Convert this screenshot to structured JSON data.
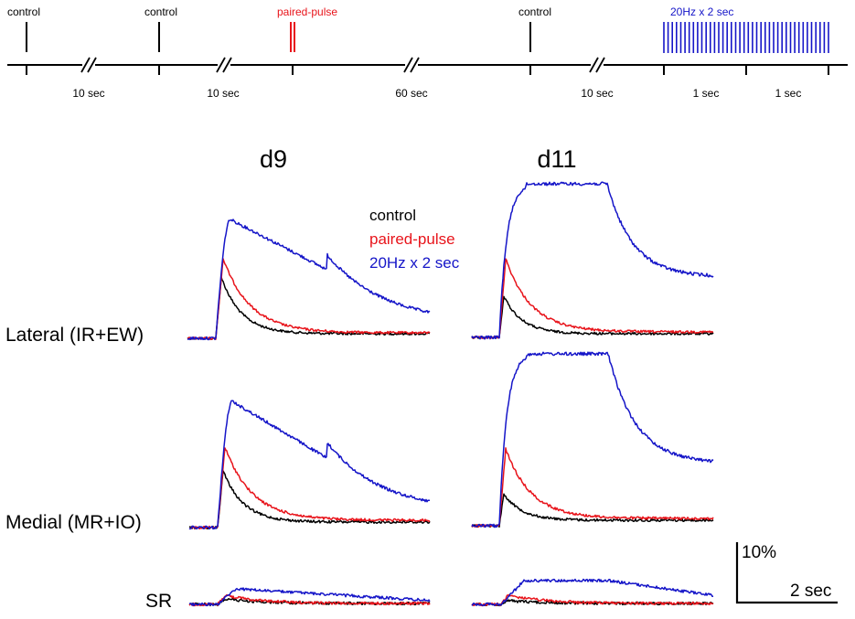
{
  "colors": {
    "control": "#000000",
    "paired": "#e8141b",
    "tetanus": "#1515c8"
  },
  "timeline": {
    "labels": {
      "control1": "control",
      "control2": "control",
      "paired": "paired-pulse",
      "control3": "control",
      "train": "20Hz x 2 sec"
    },
    "intervals": [
      "10 sec",
      "10 sec",
      "60 sec",
      "10 sec",
      "1 sec",
      "1 sec"
    ]
  },
  "columns": [
    "d9",
    "d11"
  ],
  "rows": [
    "Lateral (IR+EW)",
    "Medial (MR+IO)",
    "SR"
  ],
  "legend": {
    "control": "control",
    "paired": "paired-pulse",
    "tetanus": "20Hz x 2 sec"
  },
  "scale_bar": {
    "amplitude": "10%",
    "time": "2 sec"
  }
}
